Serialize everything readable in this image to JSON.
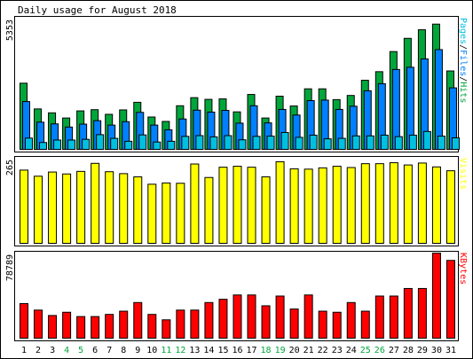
{
  "colors": {
    "background": "#FFFFFF",
    "panel_bg": "#FFFFFF",
    "border": "#000000",
    "hits": "#00A63B",
    "files": "#0080FF",
    "pages": "#00C0E0",
    "visits": "#FFFF00",
    "kbytes": "#FF0000",
    "weekend_label": "#00A63B",
    "weekday_label": "#000000"
  },
  "chart_data": {
    "type": "bar",
    "title": "Daily usage for August 2018",
    "categories": [
      "1",
      "2",
      "3",
      "4",
      "5",
      "6",
      "7",
      "8",
      "9",
      "10",
      "11",
      "12",
      "13",
      "14",
      "15",
      "16",
      "17",
      "18",
      "19",
      "20",
      "21",
      "22",
      "23",
      "24",
      "25",
      "26",
      "27",
      "28",
      "29",
      "30",
      "31"
    ],
    "weekend_days": [
      "4",
      "5",
      "11",
      "12",
      "18",
      "19",
      "25",
      "26"
    ],
    "panels": [
      {
        "id": "hits-files-pages",
        "max_label": "5353",
        "ylim": [
          0,
          5353
        ],
        "legend": [
          {
            "text": "Pages",
            "color": "#00C0E0"
          },
          {
            "text": "/",
            "color": "#000000"
          },
          {
            "text": "Files",
            "color": "#0080FF"
          },
          {
            "text": "/",
            "color": "#000000"
          },
          {
            "text": "Hits",
            "color": "#00A63B"
          }
        ],
        "series": [
          {
            "name": "Hits",
            "color": "#00A63B",
            "values": [
              2700,
              1650,
              1490,
              1280,
              1570,
              1620,
              1430,
              1610,
              1920,
              1320,
              1140,
              1780,
              2110,
              2040,
              2060,
              1530,
              2240,
              1280,
              2170,
              1770,
              2470,
              2470,
              2030,
              2200,
              2820,
              3170,
              3990,
              4530,
              4880,
              5110,
              3200
            ]
          },
          {
            "name": "Files",
            "color": "#0080FF",
            "values": [
              1950,
              1110,
              1040,
              910,
              1030,
              1170,
              990,
              1130,
              1510,
              990,
              800,
              1240,
              1600,
              1520,
              1590,
              1070,
              1780,
              1080,
              1630,
              1400,
              1990,
              2010,
              1630,
              1760,
              2390,
              2680,
              3260,
              3350,
              3690,
              4070,
              2510
            ]
          },
          {
            "name": "Pages",
            "color": "#00C0E0",
            "values": [
              460,
              280,
              380,
              380,
              410,
              600,
              450,
              330,
              590,
              300,
              330,
              530,
              560,
              510,
              560,
              390,
              530,
              540,
              690,
              490,
              580,
              430,
              450,
              550,
              550,
              580,
              520,
              580,
              730,
              540,
              470
            ]
          }
        ]
      },
      {
        "id": "visits",
        "max_label": "265",
        "ylim": [
          0,
          265
        ],
        "legend": [
          {
            "text": "Visits",
            "color": "#FFFF00"
          }
        ],
        "series": [
          {
            "name": "Visits",
            "color": "#FFFF00",
            "values": [
              228,
              209,
              222,
              216,
              224,
              249,
              223,
              217,
              207,
              184,
              188,
              187,
              247,
              205,
              237,
              240,
              237,
              207,
              254,
              232,
              231,
              235,
              240,
              236,
              248,
              248,
              251,
              244,
              250,
              238,
              226
            ]
          }
        ]
      },
      {
        "id": "kbytes",
        "max_label": "78789",
        "ylim": [
          0,
          78789
        ],
        "legend": [
          {
            "text": "KBytes",
            "color": "#FF0000"
          }
        ],
        "series": [
          {
            "name": "KBytes",
            "color": "#FF0000",
            "values": [
              32000,
              26000,
              21000,
              24000,
              20000,
              20000,
              22000,
              25000,
              33000,
              22000,
              17000,
              26000,
              26000,
              33000,
              36000,
              40000,
              40000,
              30000,
              39000,
              27000,
              40000,
              25000,
              24000,
              33000,
              25000,
              39000,
              39000,
              46000,
              46000,
              78789,
              72000
            ]
          }
        ]
      }
    ]
  }
}
